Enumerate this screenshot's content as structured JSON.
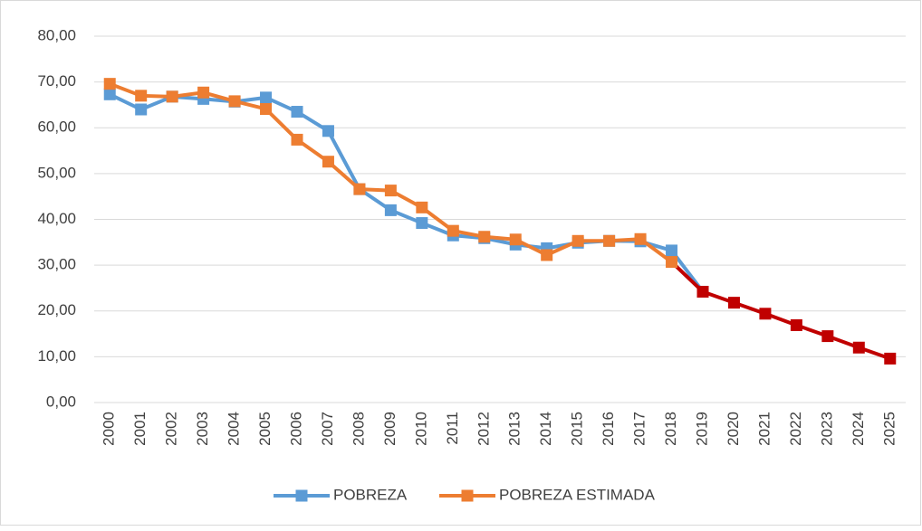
{
  "chart_data": {
    "type": "line",
    "categories": [
      "2000",
      "2001",
      "2002",
      "2003",
      "2004",
      "2005",
      "2006",
      "2007",
      "2008",
      "2009",
      "2010",
      "2011",
      "2012",
      "2013",
      "2014",
      "2015",
      "2016",
      "2017",
      "2018",
      "2019",
      "2020",
      "2021",
      "2022",
      "2023",
      "2024",
      "2025"
    ],
    "series": [
      {
        "name": "POBREZA",
        "color": "#5b9bd5",
        "values": [
          67.3,
          64.0,
          66.8,
          66.3,
          65.7,
          66.6,
          63.5,
          59.3,
          46.6,
          42.0,
          39.2,
          36.5,
          35.9,
          34.5,
          33.7,
          34.9,
          35.3,
          35.2,
          33.2,
          24.2,
          null,
          null,
          null,
          null,
          null,
          null
        ]
      },
      {
        "name": "POBREZA ESTIMADA",
        "color": "#ed7d31",
        "values": [
          69.6,
          67.0,
          66.8,
          67.7,
          65.8,
          64.1,
          57.4,
          52.6,
          46.6,
          46.3,
          42.6,
          37.5,
          36.2,
          35.6,
          32.2,
          35.3,
          35.3,
          35.7,
          30.7,
          24.2,
          21.8,
          19.4,
          16.9,
          14.5,
          12.0,
          9.6
        ],
        "point_colors": [
          "#ed7d31",
          "#ed7d31",
          "#ed7d31",
          "#ed7d31",
          "#ed7d31",
          "#ed7d31",
          "#ed7d31",
          "#ed7d31",
          "#ed7d31",
          "#ed7d31",
          "#ed7d31",
          "#ed7d31",
          "#ed7d31",
          "#ed7d31",
          "#ed7d31",
          "#ed7d31",
          "#ed7d31",
          "#ed7d31",
          "#ed7d31",
          "#c00000",
          "#c00000",
          "#c00000",
          "#c00000",
          "#c00000",
          "#c00000",
          "#c00000"
        ]
      }
    ],
    "ylim": [
      0,
      80
    ],
    "yticks": [
      {
        "value": 0,
        "label": "0,00"
      },
      {
        "value": 10,
        "label": "10,00"
      },
      {
        "value": 20,
        "label": "20,00"
      },
      {
        "value": 30,
        "label": "30,00"
      },
      {
        "value": 40,
        "label": "40,00"
      },
      {
        "value": 50,
        "label": "50,00"
      },
      {
        "value": 60,
        "label": "60,00"
      },
      {
        "value": 70,
        "label": "70,00"
      },
      {
        "value": 80,
        "label": "80,00"
      }
    ],
    "grid": true,
    "legend": "bottom"
  }
}
